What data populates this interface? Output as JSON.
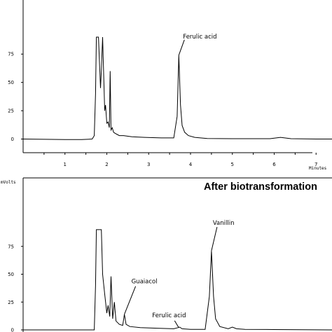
{
  "chart_data": [
    {
      "type": "line",
      "title": "",
      "xlabel": "Minutes",
      "ylabel": "",
      "xlim": [
        0,
        7.5
      ],
      "ylim": [
        -5,
        90
      ],
      "grid": false,
      "xticks": [
        1,
        2,
        3,
        4,
        5,
        6,
        7
      ],
      "yticks": [
        0,
        25,
        50,
        75
      ],
      "annotations": [
        {
          "text": "Ferulic acid",
          "x": 3.72,
          "y": 74
        }
      ],
      "series": [
        {
          "x": [
            0,
            1.0,
            1.4,
            1.65,
            1.7,
            1.73,
            1.75,
            1.77,
            1.8,
            1.85,
            1.87,
            1.9,
            1.95,
            1.97,
            2.0,
            2.03,
            2.06,
            2.08,
            2.1,
            2.13,
            2.16,
            2.2,
            2.25,
            2.3,
            2.4,
            2.6,
            2.9,
            3.3,
            3.6,
            3.68,
            3.72,
            3.76,
            3.8,
            3.86,
            3.95,
            4.1,
            4.4,
            5.0,
            5.9,
            6.15,
            6.4,
            7.0,
            7.5
          ],
          "y": [
            0,
            -0.5,
            -0.5,
            0,
            3,
            40,
            90,
            90,
            90,
            45,
            60,
            90,
            25,
            30,
            14,
            15,
            10,
            60,
            8,
            10,
            6,
            5,
            4,
            3,
            3,
            2,
            1.5,
            1,
            1,
            20,
            74,
            30,
            12,
            6,
            3,
            1.5,
            0.5,
            0.3,
            0.3,
            1.5,
            0.3,
            0,
            0
          ]
        }
      ]
    },
    {
      "type": "line",
      "title": "After biotransformation",
      "xlabel": "",
      "ylabel": "mVolts",
      "xlim": [
        0,
        7.5
      ],
      "ylim": [
        -5,
        90
      ],
      "grid": false,
      "xticks": [],
      "yticks": [
        0,
        25,
        50,
        75
      ],
      "annotations": [
        {
          "text": "Vanillin",
          "x": 4.5,
          "y": 71
        },
        {
          "text": "Guaiacol",
          "x": 2.42,
          "y": 14
        },
        {
          "text": "Ferulic acid",
          "x": 3.72,
          "y": 2
        }
      ],
      "series": [
        {
          "x": [
            0,
            1.0,
            1.5,
            1.7,
            1.73,
            1.75,
            1.78,
            1.83,
            1.87,
            1.9,
            1.95,
            2.0,
            2.03,
            2.07,
            2.1,
            2.14,
            2.18,
            2.22,
            2.3,
            2.38,
            2.42,
            2.46,
            2.55,
            2.8,
            3.2,
            3.6,
            3.7,
            3.74,
            3.8,
            4.0,
            4.35,
            4.45,
            4.5,
            4.55,
            4.6,
            4.7,
            4.9,
            5.0,
            5.1,
            5.3,
            6.0,
            7.5
          ],
          "y": [
            0,
            0,
            0,
            0,
            40,
            90,
            90,
            90,
            90,
            50,
            32,
            15,
            22,
            12,
            48,
            10,
            25,
            8,
            5,
            4,
            14,
            5,
            3,
            2,
            1.5,
            1,
            2,
            2.5,
            1,
            0.5,
            0.5,
            30,
            71,
            30,
            10,
            3,
            1,
            2.5,
            1,
            0.5,
            0.3,
            0
          ]
        }
      ]
    }
  ]
}
